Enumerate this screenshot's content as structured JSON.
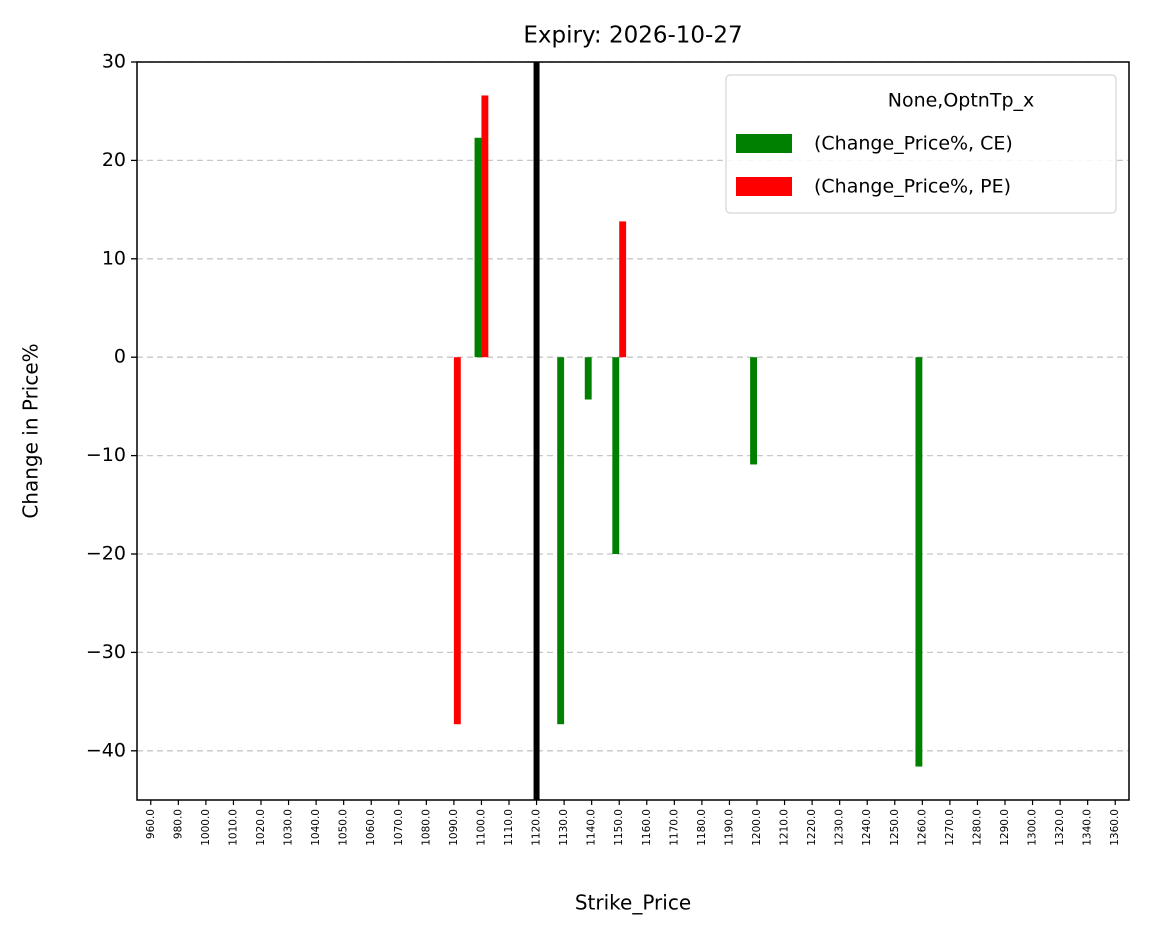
{
  "chart_data": {
    "type": "bar",
    "title": "Expiry: 2026-10-27",
    "x_label": "Strike_Price",
    "y_label": "Change in Price%",
    "categories": [
      "960.0",
      "980.0",
      "1000.0",
      "1010.0",
      "1020.0",
      "1030.0",
      "1040.0",
      "1050.0",
      "1060.0",
      "1070.0",
      "1080.0",
      "1090.0",
      "1100.0",
      "1110.0",
      "1120.0",
      "1130.0",
      "1140.0",
      "1150.0",
      "1160.0",
      "1170.0",
      "1180.0",
      "1190.0",
      "1200.0",
      "1210.0",
      "1220.0",
      "1230.0",
      "1240.0",
      "1250.0",
      "1260.0",
      "1270.0",
      "1280.0",
      "1290.0",
      "1300.0",
      "1320.0",
      "1340.0",
      "1360.0"
    ],
    "series": [
      {
        "name": "(Change_Price%, CE)",
        "color": "#008000",
        "values": [
          null,
          null,
          null,
          null,
          null,
          null,
          null,
          null,
          null,
          null,
          null,
          null,
          22.3,
          null,
          null,
          -37.3,
          -4.3,
          -20,
          null,
          null,
          null,
          null,
          -10.9,
          null,
          null,
          null,
          null,
          null,
          -41.6,
          null,
          null,
          null,
          null,
          null,
          null,
          null
        ]
      },
      {
        "name": "(Change_Price%, PE)",
        "color": "#ff0000",
        "values": [
          null,
          null,
          null,
          null,
          null,
          null,
          null,
          null,
          null,
          null,
          null,
          -37.3,
          26.6,
          null,
          null,
          null,
          null,
          13.8,
          null,
          null,
          null,
          null,
          null,
          null,
          null,
          null,
          null,
          null,
          null,
          null,
          null,
          null,
          null,
          null,
          null,
          null
        ]
      }
    ],
    "legend_title": "None,OptnTp_x",
    "legend_position": "upper right",
    "vline_at": "1120.0",
    "vline_color": "#000000",
    "ylim": [
      -45,
      30
    ],
    "yticks": [
      {
        "value": -40,
        "label": "−40"
      },
      {
        "value": -30,
        "label": "−30"
      },
      {
        "value": -20,
        "label": "−20"
      },
      {
        "value": -10,
        "label": "−10"
      },
      0,
      10,
      20,
      30
    ],
    "grid": true
  }
}
